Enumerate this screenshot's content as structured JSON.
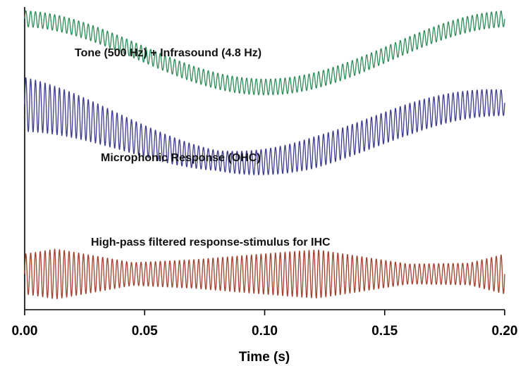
{
  "chart_data": {
    "type": "line",
    "title": "",
    "xlabel": "Time (s)",
    "ylabel": "",
    "xlim": [
      0.0,
      0.2
    ],
    "ylim": [
      -6.6,
      4.0
    ],
    "xticks": [
      0.0,
      0.05,
      0.1,
      0.15,
      0.2
    ],
    "xtick_labels": [
      "0.00",
      "0.05",
      "0.10",
      "0.15",
      "0.20"
    ],
    "y_axis_ticks": "none",
    "grid": false,
    "legend": "none",
    "series": [
      {
        "label": "Tone (500 Hz) + Infrasound (4.8 Hz)",
        "color": "#2e8b57",
        "tone_hz": 500,
        "infrasound_hz": 4.8,
        "baseline": 2.4,
        "infrasound_amplitude": 1.2,
        "infrasound_phase_rad": 0.12,
        "tone_amplitude": [
          [
            0.0,
            0.28
          ],
          [
            0.2,
            0.28
          ]
        ]
      },
      {
        "label": "Microphonic Response (OHC)",
        "color": "#3c3c8c",
        "tone_hz": 500,
        "infrasound_hz": 4.8,
        "baseline": -0.4,
        "infrasound_amplitude": 1.05,
        "infrasound_phase_rad": 0.35,
        "tone_amplitude": [
          [
            0.0,
            0.95
          ],
          [
            0.04,
            0.62
          ],
          [
            0.08,
            0.35
          ],
          [
            0.12,
            0.55
          ],
          [
            0.16,
            0.55
          ],
          [
            0.2,
            0.45
          ]
        ]
      },
      {
        "label": "High-pass filtered response-stimulus for IHC",
        "color": "#a0402d",
        "tone_hz": 500,
        "baseline": -5.35,
        "infrasound_amplitude": 0.0,
        "tone_amplitude": [
          [
            0.0,
            0.7
          ],
          [
            0.013,
            0.88
          ],
          [
            0.045,
            0.4
          ],
          [
            0.07,
            0.5
          ],
          [
            0.11,
            0.78
          ],
          [
            0.122,
            0.85
          ],
          [
            0.16,
            0.35
          ],
          [
            0.185,
            0.38
          ],
          [
            0.2,
            0.7
          ]
        ]
      }
    ]
  }
}
